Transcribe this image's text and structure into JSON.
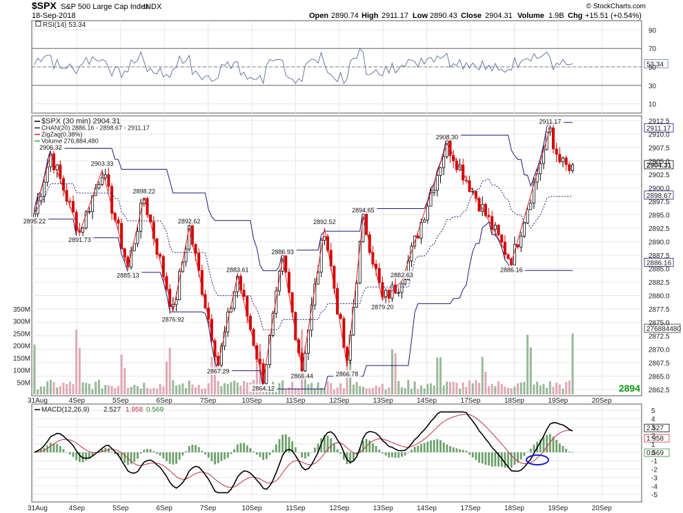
{
  "header": {
    "symbol": "$SPX",
    "name": "S&P 500 Large Cap Index",
    "exchange": "INDX",
    "date": "18-Sep-2018",
    "open_label": "Open",
    "open": "2890.74",
    "high_label": "High",
    "high": "2911.17",
    "low_label": "Low",
    "low": "2890.43",
    "close_label": "Close",
    "close": "2904.31",
    "volume_label": "Volume",
    "volume": "1.9B",
    "chg_label": "Chg",
    "chg": "+15.51 (+0.54%)",
    "source": "© StockCharts.com"
  },
  "colors": {
    "up_candle": "#000000",
    "down_candle": "#d40000",
    "channel": "#1a1a7a",
    "zigzag": "#e02020",
    "vol_up": "#98b898",
    "vol_down": "#e0a8b4",
    "rsi_line": "#6878a0",
    "macd_line": "#000000",
    "macd_signal": "#c03040",
    "macd_hist": "#6aa06a",
    "marker": "#1a1ad0",
    "ma_green": "#119911"
  },
  "rsi": {
    "label": "RSI(14) 53.34",
    "last": "53.34",
    "ticks": [
      "90",
      "70",
      "50",
      "30",
      "10"
    ]
  },
  "price": {
    "legend": [
      {
        "text": "$SPX (30 min) 2904.31",
        "color": "#000000"
      },
      {
        "text": "CHAN(20) 2886.16 - 2898.67 - 2911.17",
        "color": "#1a1a7a"
      },
      {
        "text": "ZigZag(0.38%)",
        "color": "#e02020"
      },
      {
        "text": "Volume 276,884,480",
        "color": "#33aa33"
      }
    ],
    "ticks": [
      "2912.5",
      "2910.0",
      "2907.5",
      "2905.0",
      "2902.5",
      "2900.0",
      "2897.5",
      "2895.0",
      "2892.5",
      "2890.0",
      "2887.5",
      "2885.0",
      "2882.5",
      "2880.0",
      "2877.5",
      "2875.0",
      "2872.5",
      "2870.0",
      "2867.5",
      "2865.0",
      "2862.5"
    ],
    "tags": [
      {
        "text": "2911.17",
        "color": "#1a1a7a",
        "bold": false
      },
      {
        "text": "2904.31",
        "color": "#000000",
        "bold": true
      },
      {
        "text": "2898.67",
        "color": "#1a1a7a",
        "bold": false
      },
      {
        "text": "2886.16",
        "color": "#1a1a7a",
        "bold": false
      },
      {
        "text": "276884480",
        "color": "#333333",
        "bold": false
      }
    ],
    "ma_value": "2894",
    "volume_ticks": [
      "350M",
      "300M",
      "250M",
      "200M",
      "150M",
      "100M",
      "50M"
    ]
  },
  "macd": {
    "label_prefix": "MACD(12,26,9)",
    "macd": "2.527",
    "signal": "1.958",
    "hist": "0.569",
    "ticks": [
      "5",
      "4",
      "3",
      "2",
      "1",
      "0",
      "-1",
      "-2",
      "-3",
      "-4",
      "-5"
    ]
  },
  "dates": [
    "31Aug",
    "4Sep",
    "5Sep",
    "6Sep",
    "7Sep",
    "10Sep",
    "11Sep",
    "12Sep",
    "13Sep",
    "14Sep",
    "17Sep",
    "18Sep",
    "19Sep",
    "20Sep"
  ],
  "chart_data": {
    "type": "candlestick",
    "title": "$SPX S&P 500 Large Cap Index",
    "interval": "30 min",
    "x": [
      "31Aug",
      "4Sep",
      "5Sep",
      "6Sep",
      "7Sep",
      "10Sep",
      "11Sep",
      "12Sep",
      "13Sep",
      "14Sep",
      "17Sep",
      "18Sep",
      "19Sep",
      "20Sep"
    ],
    "ylim": [
      2862.5,
      2912.5
    ],
    "zigzag_pivots": [
      {
        "x": "31Aug",
        "y": 2895.22
      },
      {
        "x": "31Aug",
        "y": 2906.32
      },
      {
        "x": "31Aug",
        "y": 2891.73
      },
      {
        "x": "4Sep",
        "y": 2903.33
      },
      {
        "x": "4Sep",
        "y": 2885.13
      },
      {
        "x": "5Sep",
        "y": 2898.22
      },
      {
        "x": "5Sep",
        "y": 2876.92
      },
      {
        "x": "6Sep",
        "y": 2892.62
      },
      {
        "x": "6Sep",
        "y": 2867.29
      },
      {
        "x": "7Sep",
        "y": 2883.61
      },
      {
        "x": "7Sep",
        "y": 2864.12
      },
      {
        "x": "10Sep",
        "y": 2886.93
      },
      {
        "x": "10Sep",
        "y": 2866.44
      },
      {
        "x": "11Sep",
        "y": 2892.52
      },
      {
        "x": "11Sep",
        "y": 2866.78
      },
      {
        "x": "12Sep",
        "y": 2894.65
      },
      {
        "x": "12Sep",
        "y": 2879.2
      },
      {
        "x": "13Sep",
        "y": 2882.63
      },
      {
        "x": "14Sep",
        "y": 2908.3
      },
      {
        "x": "18Sep",
        "y": 2886.16
      },
      {
        "x": "18Sep",
        "y": 2911.17
      }
    ],
    "last": {
      "open": 2890.74,
      "high": 2911.17,
      "low": 2890.43,
      "close": 2904.31
    },
    "channel_last": {
      "low": 2886.16,
      "mid": 2898.67,
      "high": 2911.17
    },
    "volume_last": 276884480,
    "rsi_last": 53.34,
    "macd_last": {
      "macd": 2.527,
      "signal": 1.958,
      "histogram": 0.569
    }
  }
}
